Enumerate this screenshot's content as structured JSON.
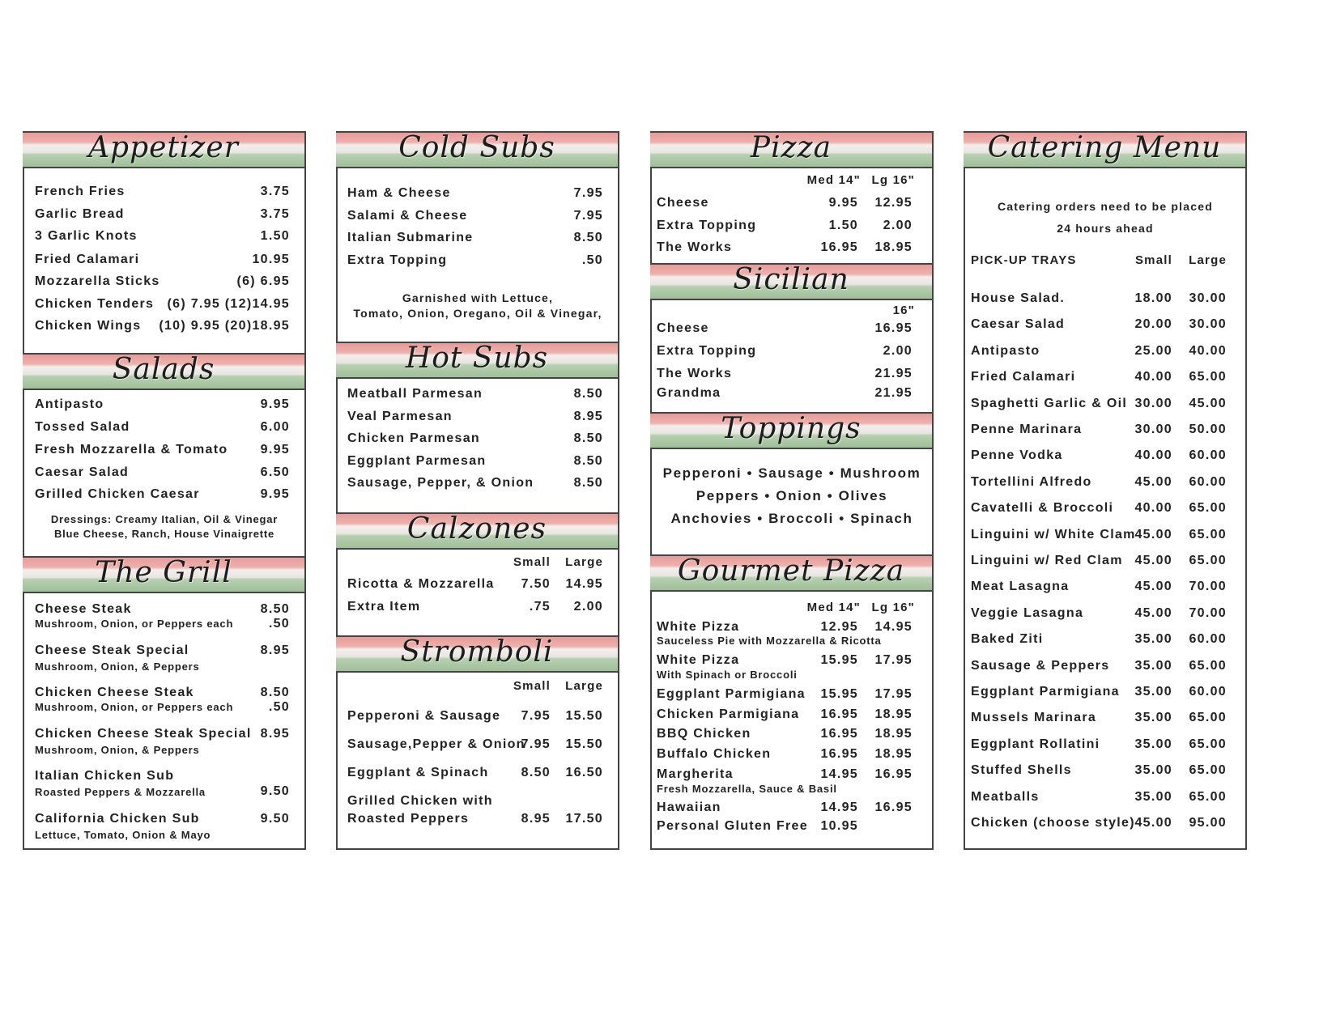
{
  "columns": [
    {
      "sections": [
        {
          "title": "Appetizer",
          "items": [
            {
              "name": "French Fries",
              "prices": [
                "3.75"
              ]
            },
            {
              "name": "Garlic Bread",
              "prices": [
                "3.75"
              ]
            },
            {
              "name": "3 Garlic Knots",
              "prices": [
                "1.50"
              ]
            },
            {
              "name": "Fried Calamari",
              "prices": [
                "10.95"
              ]
            },
            {
              "name": "Mozzarella Sticks",
              "prices": [
                "(6)  6.95"
              ]
            },
            {
              "name": "Chicken Tenders",
              "prices": [
                "(6) 7.95  (12)14.95"
              ]
            },
            {
              "name": "Chicken Wings",
              "prices": [
                "(10) 9.95  (20)18.95"
              ]
            }
          ]
        },
        {
          "title": "Salads",
          "items": [
            {
              "name": "Antipasto",
              "prices": [
                "9.95"
              ]
            },
            {
              "name": "Tossed Salad",
              "prices": [
                "6.00"
              ]
            },
            {
              "name": "Fresh Mozzarella & Tomato",
              "prices": [
                "9.95"
              ]
            },
            {
              "name": "Caesar Salad",
              "prices": [
                "6.50"
              ]
            },
            {
              "name": "Grilled Chicken Caesar",
              "prices": [
                "9.95"
              ]
            }
          ],
          "notes": [
            "Dressings: Creamy Italian, Oil & Vinegar",
            "Blue Cheese, Ranch, House Vinaigrette"
          ]
        },
        {
          "title": "The Grill",
          "items": [
            {
              "name": "Cheese Steak",
              "prices": [
                "8.50"
              ],
              "sub": "Mushroom, Onion, or Peppers each",
              "sub_price": ".50"
            },
            {
              "name": "Cheese Steak Special",
              "prices": [
                "8.95"
              ],
              "sub": "Mushroom, Onion, & Peppers"
            },
            {
              "name": "Chicken Cheese Steak",
              "prices": [
                "8.50"
              ],
              "sub": "Mushroom, Onion, or Peppers each",
              "sub_price": ".50"
            },
            {
              "name": "Chicken Cheese Steak Special",
              "prices": [
                "8.95"
              ],
              "sub": "Mushroom, Onion, & Peppers"
            },
            {
              "name": "Italian Chicken Sub",
              "prices": [
                "9.50"
              ],
              "sub": "Roasted Peppers & Mozzarella"
            },
            {
              "name": "California Chicken Sub",
              "prices": [
                "9.50"
              ],
              "sub": "Lettuce, Tomato, Onion & Mayo"
            }
          ]
        }
      ]
    },
    {
      "sections": [
        {
          "title": "Cold Subs",
          "items": [
            {
              "name": "Ham & Cheese",
              "prices": [
                "7.95"
              ]
            },
            {
              "name": "Salami & Cheese",
              "prices": [
                "7.95"
              ]
            },
            {
              "name": "Italian Submarine",
              "prices": [
                "8.50"
              ]
            },
            {
              "name": "Extra Topping",
              "prices": [
                ".50"
              ]
            }
          ],
          "notes": [
            "Garnished with Lettuce,",
            "Tomato, Onion, Oregano, Oil & Vinegar,"
          ]
        },
        {
          "title": "Hot Subs",
          "items": [
            {
              "name": "Meatball Parmesan",
              "prices": [
                "8.50"
              ]
            },
            {
              "name": "Veal Parmesan",
              "prices": [
                "8.95"
              ]
            },
            {
              "name": "Chicken Parmesan",
              "prices": [
                "8.50"
              ]
            },
            {
              "name": "Eggplant Parmesan",
              "prices": [
                "8.50"
              ]
            },
            {
              "name": "Sausage, Pepper, & Onion",
              "prices": [
                "8.50"
              ]
            }
          ]
        },
        {
          "title": "Calzones",
          "columns": [
            "Small",
            "Large"
          ],
          "items": [
            {
              "name": "Ricotta & Mozzarella",
              "prices": [
                "7.50",
                "14.95"
              ]
            },
            {
              "name": "Extra Item",
              "prices": [
                ".75",
                "2.00"
              ]
            }
          ]
        },
        {
          "title": "Stromboli",
          "columns": [
            "Small",
            "Large"
          ],
          "items": [
            {
              "name": "Pepperoni & Sausage",
              "prices": [
                "7.95",
                "15.50"
              ]
            },
            {
              "name": "Sausage,Pepper & Onion",
              "prices": [
                "7.95",
                "15.50"
              ]
            },
            {
              "name": "Eggplant & Spinach",
              "prices": [
                "8.50",
                "16.50"
              ]
            },
            {
              "name": "Grilled Chicken with",
              "name_line2": "Roasted Peppers",
              "prices": [
                "8.95",
                "17.50"
              ]
            }
          ]
        }
      ]
    },
    {
      "sections": [
        {
          "title": "Pizza",
          "columns": [
            "Med 14\"",
            "Lg 16\""
          ],
          "items": [
            {
              "name": "Cheese",
              "prices": [
                "9.95",
                "12.95"
              ]
            },
            {
              "name": "Extra Topping",
              "prices": [
                "1.50",
                "2.00"
              ]
            },
            {
              "name": "The Works",
              "prices": [
                "16.95",
                "18.95"
              ]
            }
          ]
        },
        {
          "title": "Sicilian",
          "columns": [
            "16\""
          ],
          "items": [
            {
              "name": "Cheese",
              "prices": [
                "16.95"
              ]
            },
            {
              "name": "Extra Topping",
              "prices": [
                "2.00"
              ]
            },
            {
              "name": "The Works",
              "prices": [
                "21.95"
              ]
            },
            {
              "name": "Grandma",
              "prices": [
                "21.95"
              ]
            }
          ]
        },
        {
          "title": "Toppings",
          "lines": [
            "Pepperoni • Sausage • Mushroom",
            "Peppers • Onion • Olives",
            "Anchovies • Broccoli • Spinach"
          ]
        },
        {
          "title": "Gourmet Pizza",
          "columns": [
            "Med 14\"",
            "Lg 16\""
          ],
          "items": [
            {
              "name": "White Pizza",
              "prices": [
                "12.95",
                "14.95"
              ],
              "sub": "Sauceless Pie with Mozzarella & Ricotta"
            },
            {
              "name": "White Pizza",
              "prices": [
                "15.95",
                "17.95"
              ],
              "sub": "With Spinach or Broccoli"
            },
            {
              "name": "Eggplant Parmigiana",
              "prices": [
                "15.95",
                "17.95"
              ]
            },
            {
              "name": "Chicken Parmigiana",
              "prices": [
                "16.95",
                "18.95"
              ]
            },
            {
              "name": "BBQ Chicken",
              "prices": [
                "16.95",
                "18.95"
              ]
            },
            {
              "name": "Buffalo Chicken",
              "prices": [
                "16.95",
                "18.95"
              ]
            },
            {
              "name": "Margherita",
              "prices": [
                "14.95",
                "16.95"
              ],
              "sub": "Fresh Mozzarella, Sauce & Basil"
            },
            {
              "name": "Hawaiian",
              "prices": [
                "14.95",
                "16.95"
              ]
            },
            {
              "name": "Personal Gluten Free",
              "prices": [
                "10.95",
                null
              ]
            }
          ]
        }
      ]
    },
    {
      "sections": [
        {
          "title": "Catering Menu",
          "notes": [
            "Catering orders need to be placed",
            "24 hours ahead"
          ],
          "label": "PICK-UP TRAYS",
          "columns": [
            "Small",
            "Large"
          ],
          "items": [
            {
              "name": "House Salad.",
              "prices": [
                "18.00",
                "30.00"
              ]
            },
            {
              "name": "Caesar Salad",
              "prices": [
                "20.00",
                "30.00"
              ]
            },
            {
              "name": "Antipasto",
              "prices": [
                "25.00",
                "40.00"
              ]
            },
            {
              "name": "Fried Calamari",
              "prices": [
                "40.00",
                "65.00"
              ]
            },
            {
              "name": "Spaghetti Garlic & Oil",
              "prices": [
                "30.00",
                "45.00"
              ]
            },
            {
              "name": "Penne Marinara",
              "prices": [
                "30.00",
                "50.00"
              ]
            },
            {
              "name": "Penne Vodka",
              "prices": [
                "40.00",
                "60.00"
              ]
            },
            {
              "name": "Tortellini Alfredo",
              "prices": [
                "45.00",
                "60.00"
              ]
            },
            {
              "name": "Cavatelli & Broccoli",
              "prices": [
                "40.00",
                "65.00"
              ]
            },
            {
              "name": "Linguini w/ White Clam",
              "prices": [
                "45.00",
                "65.00"
              ]
            },
            {
              "name": "Linguini w/ Red Clam",
              "prices": [
                "45.00",
                "65.00"
              ]
            },
            {
              "name": "Meat  Lasagna",
              "prices": [
                "45.00",
                "70.00"
              ]
            },
            {
              "name": "Veggie Lasagna",
              "prices": [
                "45.00",
                "70.00"
              ]
            },
            {
              "name": "Baked Ziti",
              "prices": [
                "35.00",
                "60.00"
              ]
            },
            {
              "name": "Sausage & Peppers",
              "prices": [
                "35.00",
                "65.00"
              ]
            },
            {
              "name": "Eggplant Parmigiana",
              "prices": [
                "35.00",
                "60.00"
              ]
            },
            {
              "name": "Mussels Marinara",
              "prices": [
                "35.00",
                "65.00"
              ]
            },
            {
              "name": "Eggplant Rollatini",
              "prices": [
                "35.00",
                "65.00"
              ]
            },
            {
              "name": "Stuffed Shells",
              "prices": [
                "35.00",
                "65.00"
              ]
            },
            {
              "name": "Meatballs",
              "prices": [
                "35.00",
                "65.00"
              ]
            },
            {
              "name": "Chicken (choose style)",
              "prices": [
                "45.00",
                "95.00"
              ]
            }
          ]
        }
      ]
    }
  ]
}
